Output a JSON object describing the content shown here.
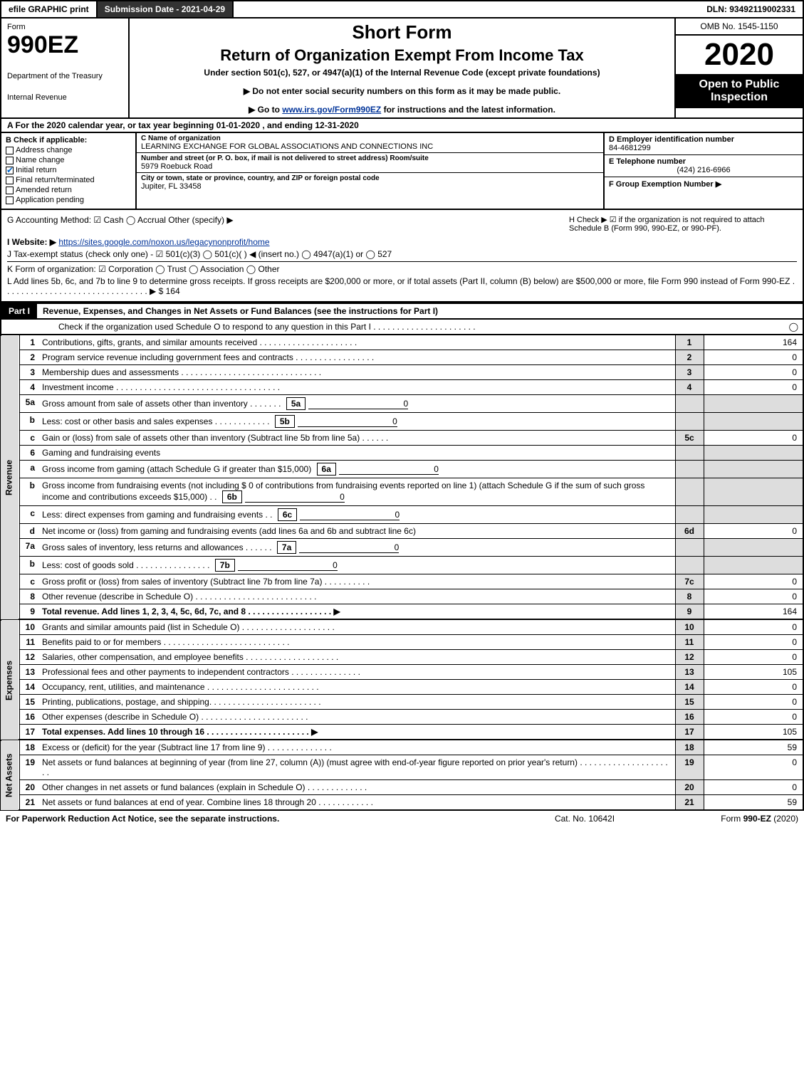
{
  "topbar": {
    "efile": "efile GRAPHIC print",
    "submission": "Submission Date - 2021-04-29",
    "dln": "DLN: 93492119002331"
  },
  "header": {
    "form_word": "Form",
    "form_num": "990EZ",
    "dept1": "Department of the Treasury",
    "dept2": "Internal Revenue",
    "short": "Short Form",
    "return_title": "Return of Organization Exempt From Income Tax",
    "under": "Under section 501(c), 527, or 4947(a)(1) of the Internal Revenue Code (except private foundations)",
    "note1": "▶ Do not enter social security numbers on this form as it may be made public.",
    "note2_pre": "▶ Go to ",
    "note2_link": "www.irs.gov/Form990EZ",
    "note2_post": " for instructions and the latest information.",
    "omb": "OMB No. 1545-1150",
    "year": "2020",
    "open": "Open to Public Inspection"
  },
  "lineA": "A  For the 2020 calendar year, or tax year beginning 01-01-2020 , and ending 12-31-2020",
  "sectionB": {
    "title": "B  Check if applicable:",
    "opts": [
      "Address change",
      "Name change",
      "Initial return",
      "Final return/terminated",
      "Amended return",
      "Application pending"
    ],
    "checked_idx": 2
  },
  "sectionC": {
    "name_lbl": "C Name of organization",
    "name": "LEARNING EXCHANGE FOR GLOBAL ASSOCIATIONS AND CONNECTIONS INC",
    "addr_lbl": "Number and street (or P. O. box, if mail is not delivered to street address)       Room/suite",
    "addr": "5979 Roebuck Road",
    "city_lbl": "City or town, state or province, country, and ZIP or foreign postal code",
    "city": "Jupiter, FL  33458"
  },
  "sectionD": {
    "ein_lbl": "D Employer identification number",
    "ein": "84-4681299",
    "tel_lbl": "E Telephone number",
    "tel": "(424) 216-6966",
    "grp_lbl": "F Group Exemption Number   ▶"
  },
  "meta": {
    "g": "G Accounting Method:   ☑ Cash  ◯ Accrual   Other (specify) ▶",
    "h": "H  Check ▶ ☑ if the organization is not required to attach Schedule B (Form 990, 990-EZ, or 990-PF).",
    "i_pre": "I Website: ▶",
    "i_link": "https://sites.google.com/noxon.us/legacynonprofit/home",
    "j": "J Tax-exempt status (check only one) - ☑ 501(c)(3) ◯ 501(c)(  ) ◀ (insert no.) ◯ 4947(a)(1) or ◯ 527",
    "k": "K Form of organization:   ☑ Corporation  ◯ Trust  ◯ Association  ◯ Other",
    "l": "L Add lines 5b, 6c, and 7b to line 9 to determine gross receipts. If gross receipts are $200,000 or more, or if total assets (Part II, column (B) below) are $500,000 or more, file Form 990 instead of Form 990-EZ . . . . . . . . . . . . . . . . . . . . . . . . . . . . . . . ▶ $ 164"
  },
  "part1": {
    "tag": "Part I",
    "title": "Revenue, Expenses, and Changes in Net Assets or Fund Balances (see the instructions for Part I)",
    "check_line": "Check if the organization used Schedule O to respond to any question in this Part I . . . . . . . . . . . . . . . . . . . . . .",
    "check_val": "◯"
  },
  "sides": {
    "rev": "Revenue",
    "exp": "Expenses",
    "net": "Net Assets"
  },
  "rows": [
    {
      "n": "1",
      "d": "Contributions, gifts, grants, and similar amounts received . . . . . . . . . . . . . . . . . . . . .",
      "box": "1",
      "amt": "164"
    },
    {
      "n": "2",
      "d": "Program service revenue including government fees and contracts . . . . . . . . . . . . . . . . .",
      "box": "2",
      "amt": "0"
    },
    {
      "n": "3",
      "d": "Membership dues and assessments . . . . . . . . . . . . . . . . . . . . . . . . . . . . . .",
      "box": "3",
      "amt": "0"
    },
    {
      "n": "4",
      "d": "Investment income . . . . . . . . . . . . . . . . . . . . . . . . . . . . . . . . . . .",
      "box": "4",
      "amt": "0"
    },
    {
      "n": "5a",
      "d": "Gross amount from sale of assets other than inventory . . . . . . .",
      "ibox": "5a",
      "iamt": "0"
    },
    {
      "n": "b",
      "d": "Less: cost or other basis and sales expenses . . . . . . . . . . . .",
      "ibox": "5b",
      "iamt": "0"
    },
    {
      "n": "c",
      "d": "Gain or (loss) from sale of assets other than inventory (Subtract line 5b from line 5a) . . . . . .",
      "box": "5c",
      "amt": "0"
    },
    {
      "n": "6",
      "d": "Gaming and fundraising events",
      "noamt": true
    },
    {
      "n": "a",
      "d": "Gross income from gaming (attach Schedule G if greater than $15,000)",
      "ibox": "6a",
      "iamt": "0"
    },
    {
      "n": "b",
      "d": "Gross income from fundraising events (not including $  0           of contributions from fundraising events reported on line 1) (attach Schedule G if the sum of such gross income and contributions exceeds $15,000)     . .",
      "ibox": "6b",
      "iamt": "0"
    },
    {
      "n": "c",
      "d": "Less: direct expenses from gaming and fundraising events         . .",
      "ibox": "6c",
      "iamt": "0"
    },
    {
      "n": "d",
      "d": "Net income or (loss) from gaming and fundraising events (add lines 6a and 6b and subtract line 6c)",
      "box": "6d",
      "amt": "0"
    },
    {
      "n": "7a",
      "d": "Gross sales of inventory, less returns and allowances . . . . . .",
      "ibox": "7a",
      "iamt": "0"
    },
    {
      "n": "b",
      "d": "Less: cost of goods sold       . . . . . . . . . . . . . . . .",
      "ibox": "7b",
      "iamt": "0"
    },
    {
      "n": "c",
      "d": "Gross profit or (loss) from sales of inventory (Subtract line 7b from line 7a) . . . . . . . . . .",
      "box": "7c",
      "amt": "0"
    },
    {
      "n": "8",
      "d": "Other revenue (describe in Schedule O) . . . . . . . . . . . . . . . . . . . . . . . . . .",
      "box": "8",
      "amt": "0"
    },
    {
      "n": "9",
      "d": "Total revenue. Add lines 1, 2, 3, 4, 5c, 6d, 7c, and 8  . . . . . . . . . . . . . . . . . .   ▶",
      "box": "9",
      "amt": "164",
      "bold": true
    }
  ],
  "exp_rows": [
    {
      "n": "10",
      "d": "Grants and similar amounts paid (list in Schedule O) . . . . . . . . . . . . . . . . . . . .",
      "box": "10",
      "amt": "0"
    },
    {
      "n": "11",
      "d": "Benefits paid to or for members     . . . . . . . . . . . . . . . . . . . . . . . . . . .",
      "box": "11",
      "amt": "0"
    },
    {
      "n": "12",
      "d": "Salaries, other compensation, and employee benefits . . . . . . . . . . . . . . . . . . . .",
      "box": "12",
      "amt": "0"
    },
    {
      "n": "13",
      "d": "Professional fees and other payments to independent contractors . . . . . . . . . . . . . . .",
      "box": "13",
      "amt": "105"
    },
    {
      "n": "14",
      "d": "Occupancy, rent, utilities, and maintenance . . . . . . . . . . . . . . . . . . . . . . . .",
      "box": "14",
      "amt": "0"
    },
    {
      "n": "15",
      "d": "Printing, publications, postage, and shipping. . . . . . . . . . . . . . . . . . . . . . . .",
      "box": "15",
      "amt": "0"
    },
    {
      "n": "16",
      "d": "Other expenses (describe in Schedule O)     . . . . . . . . . . . . . . . . . . . . . . .",
      "box": "16",
      "amt": "0"
    },
    {
      "n": "17",
      "d": "Total expenses. Add lines 10 through 16     . . . . . . . . . . . . . . . . . . . . . .   ▶",
      "box": "17",
      "amt": "105",
      "bold": true
    }
  ],
  "net_rows": [
    {
      "n": "18",
      "d": "Excess or (deficit) for the year (Subtract line 17 from line 9)        . . . . . . . . . . . . . .",
      "box": "18",
      "amt": "59"
    },
    {
      "n": "19",
      "d": "Net assets or fund balances at beginning of year (from line 27, column (A)) (must agree with end-of-year figure reported on prior year's return) . . . . . . . . . . . . . . . . . . . . .",
      "box": "19",
      "amt": "0"
    },
    {
      "n": "20",
      "d": "Other changes in net assets or fund balances (explain in Schedule O) . . . . . . . . . . . . .",
      "box": "20",
      "amt": "0"
    },
    {
      "n": "21",
      "d": "Net assets or fund balances at end of year. Combine lines 18 through 20 . . . . . . . . . . . .",
      "box": "21",
      "amt": "59"
    }
  ],
  "footer": {
    "l": "For Paperwork Reduction Act Notice, see the separate instructions.",
    "c": "Cat. No. 10642I",
    "r": "Form 990-EZ (2020)"
  }
}
